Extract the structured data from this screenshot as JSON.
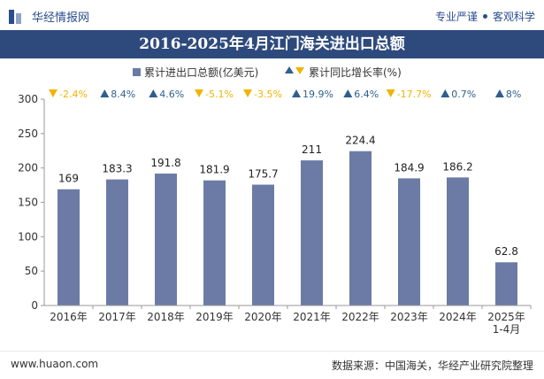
{
  "header": {
    "brand": "华经情报网",
    "slogan_left": "专业严谨",
    "slogan_right": "客观科学"
  },
  "colors": {
    "bar": "#6b7ba6",
    "title_bg": "#2e4a7d",
    "up": "#2f5f8f",
    "down": "#f0b400"
  },
  "chart_data": {
    "type": "bar",
    "title": "2016-2025年4月江门海关进出口总额",
    "categories": [
      "2016年",
      "2017年",
      "2018年",
      "2019年",
      "2020年",
      "2021年",
      "2022年",
      "2023年",
      "2024年",
      "2025年\n1-4月"
    ],
    "series": [
      {
        "name": "累计进出口总额(亿美元)",
        "values": [
          169,
          183.3,
          191.8,
          181.9,
          175.7,
          211,
          224.4,
          184.9,
          186.2,
          62.8
        ]
      },
      {
        "name": "累计同比增长率(%)",
        "values": [
          -2.4,
          8.4,
          4.6,
          -5.1,
          -3.5,
          19.9,
          6.4,
          -17.7,
          0.7,
          8
        ]
      }
    ],
    "growth_labels": [
      "-2.4%",
      "8.4%",
      "4.6%",
      "-5.1%",
      "-3.5%",
      "19.9%",
      "6.4%",
      "-17.7%",
      "0.7%",
      "8%"
    ],
    "ylim": [
      0,
      300
    ],
    "yticks": [
      0,
      50,
      100,
      150,
      200,
      250,
      300
    ],
    "legend": [
      "累计进出口总额(亿美元)",
      "累计同比增长率(%)"
    ]
  },
  "footer": {
    "website": "www.huaon.com",
    "source": "数据来源：中国海关，华经产业研究院整理"
  }
}
